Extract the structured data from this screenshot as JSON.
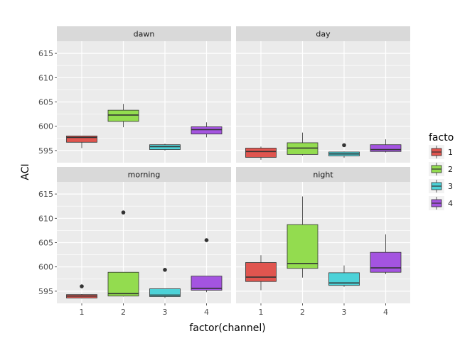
{
  "chart_data": {
    "type": "boxplot",
    "facet_by": "time",
    "xlabel": "factor(channel)",
    "ylabel": "ACI",
    "x_categories": [
      "1",
      "2",
      "3",
      "4"
    ],
    "y_ticks": [
      595,
      600,
      605,
      610,
      615
    ],
    "ylim": [
      592.5,
      617.5
    ],
    "legend": {
      "title": "factor(channel)",
      "shown_title": "facto",
      "entries": [
        {
          "label": "1",
          "color": "#e0554f"
        },
        {
          "label": "2",
          "color": "#93dc4f"
        },
        {
          "label": "3",
          "color": "#4cd2d8"
        },
        {
          "label": "4",
          "color": "#a454e0"
        }
      ]
    },
    "panels": [
      {
        "name": "dawn",
        "boxes": [
          {
            "channel": "1",
            "whisker_low": 595.5,
            "q1": 596.7,
            "median": 597.7,
            "q3": 598.0,
            "whisker_high": 598.0,
            "outliers": []
          },
          {
            "channel": "2",
            "whisker_low": 599.8,
            "q1": 601.0,
            "median": 602.3,
            "q3": 603.3,
            "whisker_high": 604.6,
            "outliers": []
          },
          {
            "channel": "3",
            "whisker_low": 595.0,
            "q1": 595.2,
            "median": 595.8,
            "q3": 596.2,
            "whisker_high": 596.4,
            "outliers": []
          },
          {
            "channel": "4",
            "whisker_low": 597.7,
            "q1": 598.4,
            "median": 599.3,
            "q3": 599.9,
            "whisker_high": 600.8,
            "outliers": []
          }
        ]
      },
      {
        "name": "day",
        "boxes": [
          {
            "channel": "1",
            "whisker_low": 593.1,
            "q1": 593.6,
            "median": 594.8,
            "q3": 595.5,
            "whisker_high": 595.8,
            "outliers": []
          },
          {
            "channel": "2",
            "whisker_low": 594.0,
            "q1": 594.2,
            "median": 595.5,
            "q3": 596.6,
            "whisker_high": 598.7,
            "outliers": []
          },
          {
            "channel": "3",
            "whisker_low": 593.5,
            "q1": 593.9,
            "median": 594.3,
            "q3": 594.7,
            "whisker_high": 594.8,
            "outliers": [
              596.1
            ]
          },
          {
            "channel": "4",
            "whisker_low": 594.6,
            "q1": 594.8,
            "median": 595.2,
            "q3": 596.2,
            "whisker_high": 597.3,
            "outliers": []
          }
        ]
      },
      {
        "name": "morning",
        "boxes": [
          {
            "channel": "1",
            "whisker_low": 593.5,
            "q1": 593.6,
            "median": 594.0,
            "q3": 594.3,
            "whisker_high": 594.4,
            "outliers": [
              596.0
            ]
          },
          {
            "channel": "2",
            "whisker_low": 593.9,
            "q1": 594.0,
            "median": 594.5,
            "q3": 598.9,
            "whisker_high": 598.9,
            "outliers": [
              611.2
            ]
          },
          {
            "channel": "3",
            "whisker_low": 593.6,
            "q1": 593.9,
            "median": 594.2,
            "q3": 595.5,
            "whisker_high": 595.5,
            "outliers": [
              599.4
            ]
          },
          {
            "channel": "4",
            "whisker_low": 594.8,
            "q1": 595.2,
            "median": 595.6,
            "q3": 598.1,
            "whisker_high": 598.1,
            "outliers": [
              605.5
            ]
          }
        ]
      },
      {
        "name": "night",
        "boxes": [
          {
            "channel": "1",
            "whisker_low": 595.2,
            "q1": 597.0,
            "median": 597.9,
            "q3": 600.9,
            "whisker_high": 602.4,
            "outliers": []
          },
          {
            "channel": "2",
            "whisker_low": 597.8,
            "q1": 599.7,
            "median": 600.7,
            "q3": 608.7,
            "whisker_high": 614.5,
            "outliers": []
          },
          {
            "channel": "3",
            "whisker_low": 595.9,
            "q1": 596.2,
            "median": 596.7,
            "q3": 598.8,
            "whisker_high": 600.3,
            "outliers": []
          },
          {
            "channel": "4",
            "whisker_low": 598.5,
            "q1": 598.9,
            "median": 599.8,
            "q3": 603.0,
            "whisker_high": 606.7,
            "outliers": []
          }
        ]
      }
    ]
  }
}
